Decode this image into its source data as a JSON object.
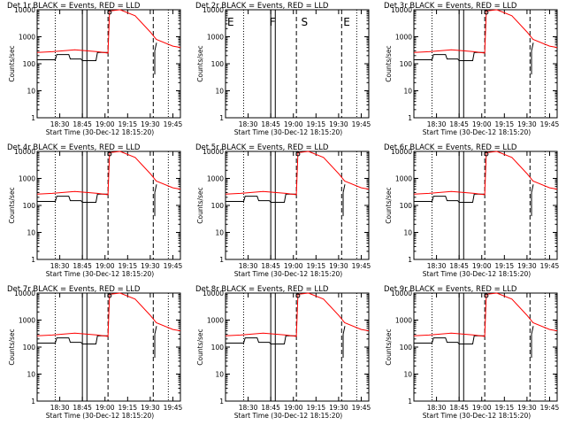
{
  "colors": {
    "events": "#000000",
    "lld": "#ff0000",
    "background": "#ffffff"
  },
  "common": {
    "ylabel": "Counts/sec",
    "xlabel": "Start Time (30-Dec-12 18:15:20)",
    "xticks": [
      "18:30",
      "18:45",
      "19:00",
      "19:15",
      "19:30",
      "19:45"
    ],
    "yticks": [
      "1",
      "10",
      "100",
      "1000",
      "10000"
    ],
    "yscale": "log",
    "ylim": [
      1,
      10000
    ]
  },
  "panels": [
    {
      "title": "Det 1r BLACK = Events, RED = LLD",
      "flags": []
    },
    {
      "title": "Det 2r BLACK = Events, RED = LLD",
      "flags": [
        "E",
        "F",
        "S",
        "E"
      ],
      "empty": true
    },
    {
      "title": "Det 3r BLACK = Events, RED = LLD",
      "flags": []
    },
    {
      "title": "Det 4r BLACK = Events, RED = LLD",
      "flags": []
    },
    {
      "title": "Det 5r BLACK = Events, RED = LLD",
      "flags": []
    },
    {
      "title": "Det 6r BLACK = Events, RED = LLD",
      "flags": []
    },
    {
      "title": "Det 7r BLACK = Events, RED = LLD",
      "flags": []
    },
    {
      "title": "Det 8r BLACK = Events, RED = LLD",
      "flags": []
    },
    {
      "title": "Det 9r BLACK = Events, RED = LLD",
      "flags": []
    }
  ],
  "chart_data": {
    "type": "line",
    "note_series": [
      "Events",
      "LLD"
    ],
    "x_unit": "time (HH:MM)",
    "series": [
      {
        "name": "Events",
        "color": "#000000",
        "points": [
          [
            "18:15",
            140
          ],
          [
            "18:27",
            140
          ],
          [
            "18:28",
            220
          ],
          [
            "18:36",
            220
          ],
          [
            "18:37",
            150
          ],
          [
            "18:44",
            150
          ],
          [
            "18:45",
            130
          ],
          [
            "18:54",
            130
          ],
          [
            "18:55",
            260
          ],
          [
            "19:02",
            260
          ]
        ]
      },
      {
        "name": "LLD",
        "color": "#ff0000",
        "points": [
          [
            "18:15",
            260
          ],
          [
            "18:25",
            280
          ],
          [
            "18:40",
            330
          ],
          [
            "18:55",
            280
          ],
          [
            "19:02",
            250
          ],
          [
            "19:03",
            9000
          ],
          [
            "19:10",
            14000
          ],
          [
            "19:20",
            6000
          ],
          [
            "19:30",
            1500
          ],
          [
            "19:34",
            800
          ],
          [
            "19:45",
            450
          ],
          [
            "19:50",
            400
          ]
        ]
      }
    ]
  }
}
